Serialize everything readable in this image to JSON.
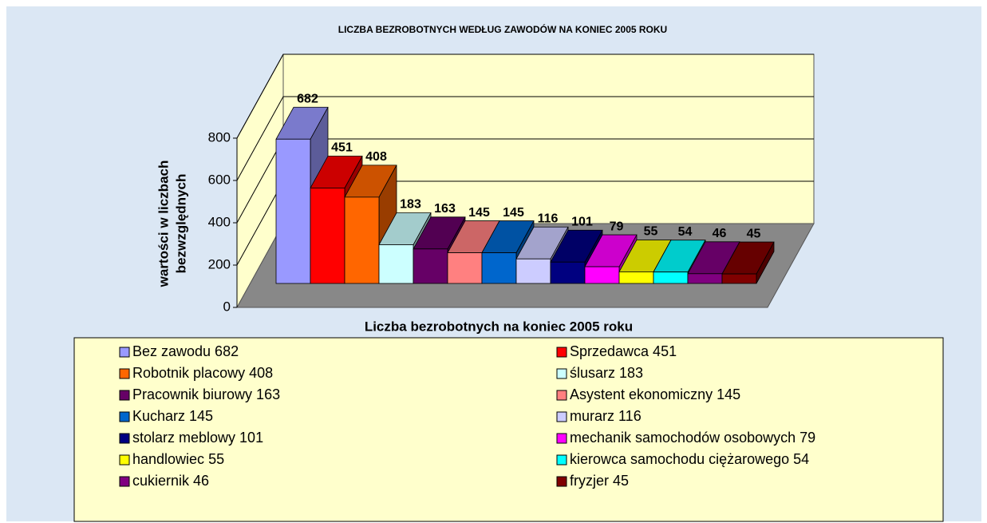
{
  "chart_data": {
    "type": "bar3d",
    "title": "LICZBA BEZROBOTNYCH  WEDŁUG ZAWODÓW NA KONIEC 2005 ROKU",
    "x_label": "Liczba bezrobotnych na koniec 2005 roku",
    "y_label": [
      "wartości w liczbach",
      "bezwzględnych"
    ],
    "categories": [
      null
    ],
    "ylim": [
      0,
      800
    ],
    "yticks": [
      0,
      200,
      400,
      600,
      800
    ],
    "grid": true,
    "series": [
      {
        "name": "Bez zawodu 682",
        "color": "#9999ff",
        "values": [
          682
        ]
      },
      {
        "name": "Sprzedawca 451",
        "color": "#ff0000",
        "values": [
          451
        ]
      },
      {
        "name": "Robotnik placowy 408",
        "color": "#ff6600",
        "values": [
          408
        ]
      },
      {
        "name": "ślusarz 183",
        "color": "#ccffff",
        "values": [
          183
        ]
      },
      {
        "name": "Pracownik biurowy 163",
        "color": "#660066",
        "values": [
          163
        ]
      },
      {
        "name": "Asystent ekonomiczny 145",
        "color": "#ff8080",
        "values": [
          145
        ]
      },
      {
        "name": "Kucharz 145",
        "color": "#0066cc",
        "values": [
          145
        ]
      },
      {
        "name": "murarz 116",
        "color": "#ccccff",
        "values": [
          116
        ]
      },
      {
        "name": "stolarz meblowy 101",
        "color": "#000080",
        "values": [
          101
        ]
      },
      {
        "name": "mechanik samochodów osobowych 79",
        "color": "#ff00ff",
        "values": [
          79
        ]
      },
      {
        "name": "handlowiec 55",
        "color": "#ffff00",
        "values": [
          55
        ]
      },
      {
        "name": "kierowca samochodu ciężarowego 54",
        "color": "#00ffff",
        "values": [
          54
        ]
      },
      {
        "name": "cukiernik 46",
        "color": "#800080",
        "values": [
          46
        ]
      },
      {
        "name": "fryzjer 45",
        "color": "#800000",
        "values": [
          45
        ]
      }
    ]
  }
}
